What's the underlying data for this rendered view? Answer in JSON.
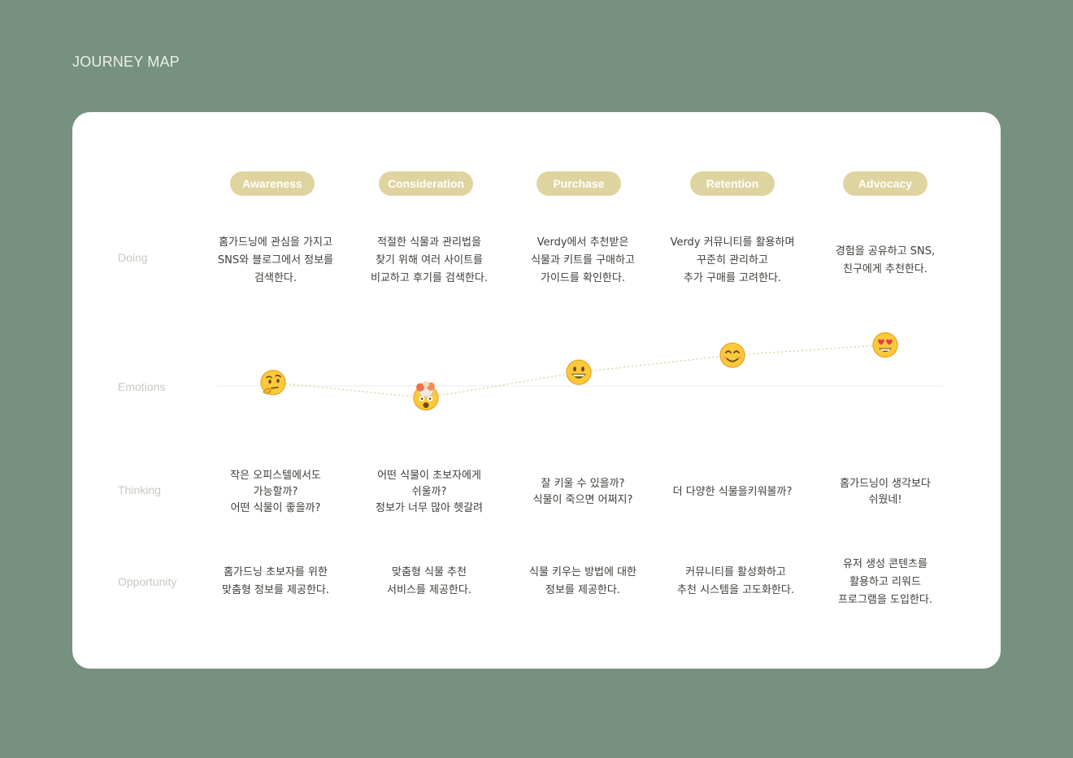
{
  "page_title": "JOURNEY MAP",
  "row_labels": {
    "doing": "Doing",
    "emotions": "Emotions",
    "thinking": "Thinking",
    "opportunity": "Opportunity"
  },
  "stages": [
    {
      "name": "Awareness",
      "doing": "홈가드닝에 관심을 가지고\nSNS와 블로그에서 정보를\n검색한다.",
      "emotion": "thinking-face",
      "thinking": "작은 오피스텔에서도\n가능할까?\n어떤 식물이 좋을까?",
      "opportunity": "홈가드닝 초보자를 위한\n맞춤형 정보를 제공한다."
    },
    {
      "name": "Consideration",
      "doing": "적절한 식물과 관리법을\n찾기 위해 여러 사이트를\n비교하고 후기를 검색한다.",
      "emotion": "exploding-head",
      "thinking": "어떤 식물이 초보자에게\n쉬울까?\n정보가 너무 많아 헷갈려",
      "opportunity": "맞춤형 식물 추천\n서비스를 제공한다."
    },
    {
      "name": "Purchase",
      "doing": "Verdy에서 추천받은\n식물과 키트를 구매하고\n가이드를 확인한다.",
      "emotion": "grinning-face",
      "thinking": "잘 키울 수 있을까?\n식물이 죽으면 어쩌지?",
      "opportunity": "식물 키우는 방법에 대한\n정보를 제공한다."
    },
    {
      "name": "Retention",
      "doing": "Verdy 커뮤니티를 활용하며\n꾸준히 관리하고\n추가 구매를 고려한다.",
      "emotion": "smiling-face",
      "thinking": "더 다양한 식물을키워볼까?",
      "opportunity": "커뮤니티를 활성화하고\n추천 시스템을 고도화한다."
    },
    {
      "name": "Advocacy",
      "doing": "경험을 공유하고 SNS,\n친구에게 추천한다.",
      "emotion": "heart-eyes-face",
      "thinking": "홈가드닝이 생각보다\n쉬웠네!",
      "opportunity": "유저 생성 콘텐츠를\n활용하고 리워드\n프로그램을 도입한다."
    }
  ],
  "emotion_levels": [
    0.2,
    -0.7,
    0.8,
    1.8,
    2.4
  ],
  "colors": {
    "background": "#76917f",
    "card": "#ffffff",
    "pill": "#dfd49f",
    "curve": "#d8cc8e",
    "label": "#c7c9bf"
  }
}
